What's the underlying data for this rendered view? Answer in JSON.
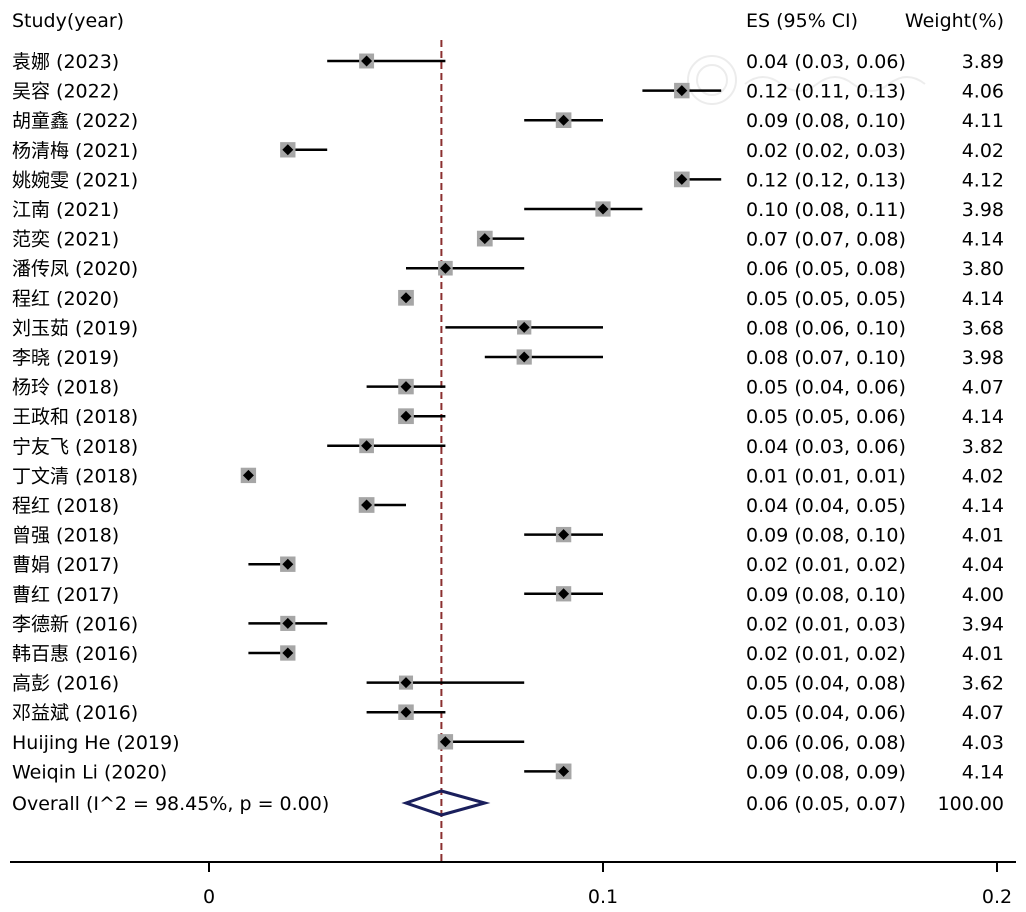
{
  "chart_data": {
    "type": "forest",
    "headers": {
      "study": "Study(year)",
      "es": "ES (95% CI)",
      "weight": "Weight(%)"
    },
    "studies": [
      {
        "label": "袁娜 (2023)",
        "es": 0.04,
        "lo": 0.03,
        "hi": 0.06,
        "es_text": "0.04 (0.03, 0.06)",
        "weight": "3.89"
      },
      {
        "label": "吴容 (2022)",
        "es": 0.12,
        "lo": 0.11,
        "hi": 0.13,
        "es_text": "0.12 (0.11, 0.13)",
        "weight": "4.06"
      },
      {
        "label": "胡童鑫 (2022)",
        "es": 0.09,
        "lo": 0.08,
        "hi": 0.1,
        "es_text": "0.09 (0.08, 0.10)",
        "weight": "4.11"
      },
      {
        "label": "杨清梅 (2021)",
        "es": 0.02,
        "lo": 0.02,
        "hi": 0.03,
        "es_text": "0.02 (0.02, 0.03)",
        "weight": "4.02"
      },
      {
        "label": "姚婉雯 (2021)",
        "es": 0.12,
        "lo": 0.12,
        "hi": 0.13,
        "es_text": "0.12 (0.12, 0.13)",
        "weight": "4.12"
      },
      {
        "label": "江南 (2021)",
        "es": 0.1,
        "lo": 0.08,
        "hi": 0.11,
        "es_text": "0.10 (0.08, 0.11)",
        "weight": "3.98"
      },
      {
        "label": "范奕 (2021)",
        "es": 0.07,
        "lo": 0.07,
        "hi": 0.08,
        "es_text": "0.07 (0.07, 0.08)",
        "weight": "4.14"
      },
      {
        "label": "潘传凤 (2020)",
        "es": 0.06,
        "lo": 0.05,
        "hi": 0.08,
        "es_text": "0.06 (0.05, 0.08)",
        "weight": "3.80"
      },
      {
        "label": "程红 (2020)",
        "es": 0.05,
        "lo": 0.05,
        "hi": 0.05,
        "es_text": "0.05 (0.05, 0.05)",
        "weight": "4.14"
      },
      {
        "label": "刘玉茹 (2019)",
        "es": 0.08,
        "lo": 0.06,
        "hi": 0.1,
        "es_text": "0.08 (0.06, 0.10)",
        "weight": "3.68"
      },
      {
        "label": "李晓 (2019)",
        "es": 0.08,
        "lo": 0.07,
        "hi": 0.1,
        "es_text": "0.08 (0.07, 0.10)",
        "weight": "3.98"
      },
      {
        "label": "杨玲 (2018)",
        "es": 0.05,
        "lo": 0.04,
        "hi": 0.06,
        "es_text": "0.05 (0.04, 0.06)",
        "weight": "4.07"
      },
      {
        "label": "王政和 (2018)",
        "es": 0.05,
        "lo": 0.05,
        "hi": 0.06,
        "es_text": "0.05 (0.05, 0.06)",
        "weight": "4.14"
      },
      {
        "label": "宁友飞 (2018)",
        "es": 0.04,
        "lo": 0.03,
        "hi": 0.06,
        "es_text": "0.04 (0.03, 0.06)",
        "weight": "3.82"
      },
      {
        "label": "丁文清 (2018)",
        "es": 0.01,
        "lo": 0.01,
        "hi": 0.01,
        "es_text": "0.01 (0.01, 0.01)",
        "weight": "4.02"
      },
      {
        "label": "程红 (2018)",
        "es": 0.04,
        "lo": 0.04,
        "hi": 0.05,
        "es_text": "0.04 (0.04, 0.05)",
        "weight": "4.14"
      },
      {
        "label": "曾强 (2018)",
        "es": 0.09,
        "lo": 0.08,
        "hi": 0.1,
        "es_text": "0.09 (0.08, 0.10)",
        "weight": "4.01"
      },
      {
        "label": "曹娟 (2017)",
        "es": 0.02,
        "lo": 0.01,
        "hi": 0.02,
        "es_text": "0.02 (0.01, 0.02)",
        "weight": "4.04"
      },
      {
        "label": "曹红 (2017)",
        "es": 0.09,
        "lo": 0.08,
        "hi": 0.1,
        "es_text": "0.09 (0.08, 0.10)",
        "weight": "4.00"
      },
      {
        "label": "李德新 (2016)",
        "es": 0.02,
        "lo": 0.01,
        "hi": 0.03,
        "es_text": "0.02 (0.01, 0.03)",
        "weight": "3.94"
      },
      {
        "label": "韩百惠 (2016)",
        "es": 0.02,
        "lo": 0.01,
        "hi": 0.02,
        "es_text": "0.02 (0.01, 0.02)",
        "weight": "4.01"
      },
      {
        "label": "高彭 (2016)",
        "es": 0.05,
        "lo": 0.04,
        "hi": 0.08,
        "es_text": "0.05 (0.04, 0.08)",
        "weight": "3.62"
      },
      {
        "label": "邓益斌 (2016)",
        "es": 0.05,
        "lo": 0.04,
        "hi": 0.06,
        "es_text": "0.05 (0.04, 0.06)",
        "weight": "4.07"
      },
      {
        "label": "Huijing He  (2019)",
        "es": 0.06,
        "lo": 0.06,
        "hi": 0.08,
        "es_text": "0.06 (0.06, 0.08)",
        "weight": "4.03"
      },
      {
        "label": "Weiqin Li (2020)",
        "es": 0.09,
        "lo": 0.08,
        "hi": 0.09,
        "es_text": "0.09 (0.08, 0.09)",
        "weight": "4.14"
      }
    ],
    "overall": {
      "label": "Overall  (I^2 = 98.45%, p = 0.00)",
      "es": 0.06,
      "lo": 0.05,
      "hi": 0.07,
      "es_text": "0.06 (0.05, 0.07)",
      "weight": "100.00"
    },
    "xlim": [
      -0.05,
      0.205
    ],
    "x_ticks": [
      0,
      0.1,
      0.2
    ],
    "x_tick_labels": [
      "0",
      "0.1",
      "0.2"
    ],
    "reference_line": "dashed line at overall effect",
    "colors": {
      "ci_line": "#000000",
      "point": "#000000",
      "weight_box": "#a6a6a6",
      "overall_diamond": "#1a1f5c",
      "reference_line": "#8b2f2f"
    }
  }
}
